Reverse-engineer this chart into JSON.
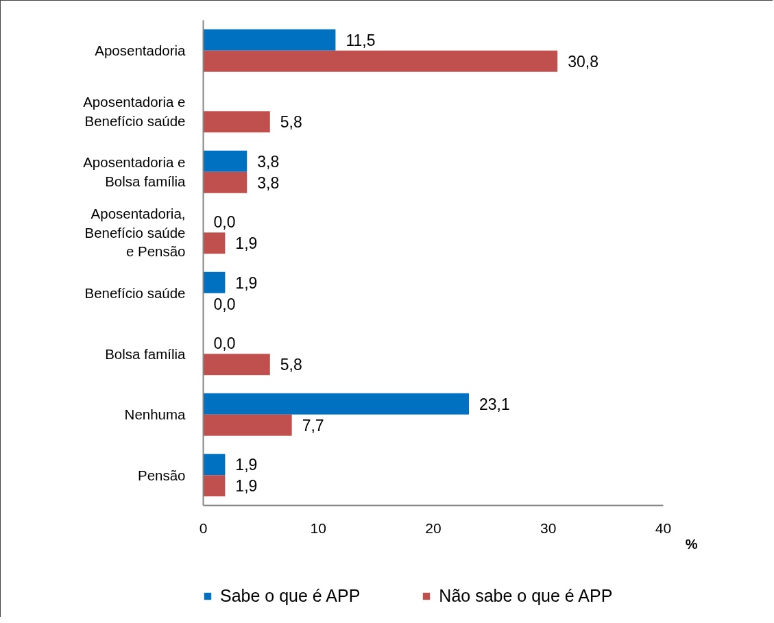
{
  "chart_data": {
    "type": "bar",
    "orientation": "horizontal",
    "categories": [
      "Aposentadoria",
      "Aposentadoria e Benefício saúde",
      "Aposentadoria e Bolsa família",
      "Aposentadoria, Benefício saúde e Pensão",
      "Benefício saúde",
      "Bolsa família",
      "Nenhuma",
      "Pensão"
    ],
    "series": [
      {
        "name": "Sabe o que é APP",
        "color": "#0070c0",
        "values": [
          11.5,
          0.0,
          3.8,
          0.0,
          1.9,
          0.0,
          23.1,
          1.9
        ],
        "value_labels": [
          "11,5",
          null,
          "3,8",
          "0,0",
          "1,9",
          "0,0",
          "23,1",
          "1,9"
        ]
      },
      {
        "name": "Não sabe o que é APP",
        "color": "#c0504d",
        "values": [
          30.8,
          5.8,
          3.8,
          1.9,
          0.0,
          5.8,
          7.7,
          1.9
        ],
        "value_labels": [
          "30,8",
          "5,8",
          "3,8",
          "1,9",
          "0,0",
          "5,8",
          "7,7",
          "1,9"
        ]
      }
    ],
    "xlabel": "%",
    "xlim": [
      0,
      40
    ],
    "xticks": [
      0,
      10,
      20,
      30,
      40
    ],
    "grid": false,
    "legend": "bottom"
  }
}
